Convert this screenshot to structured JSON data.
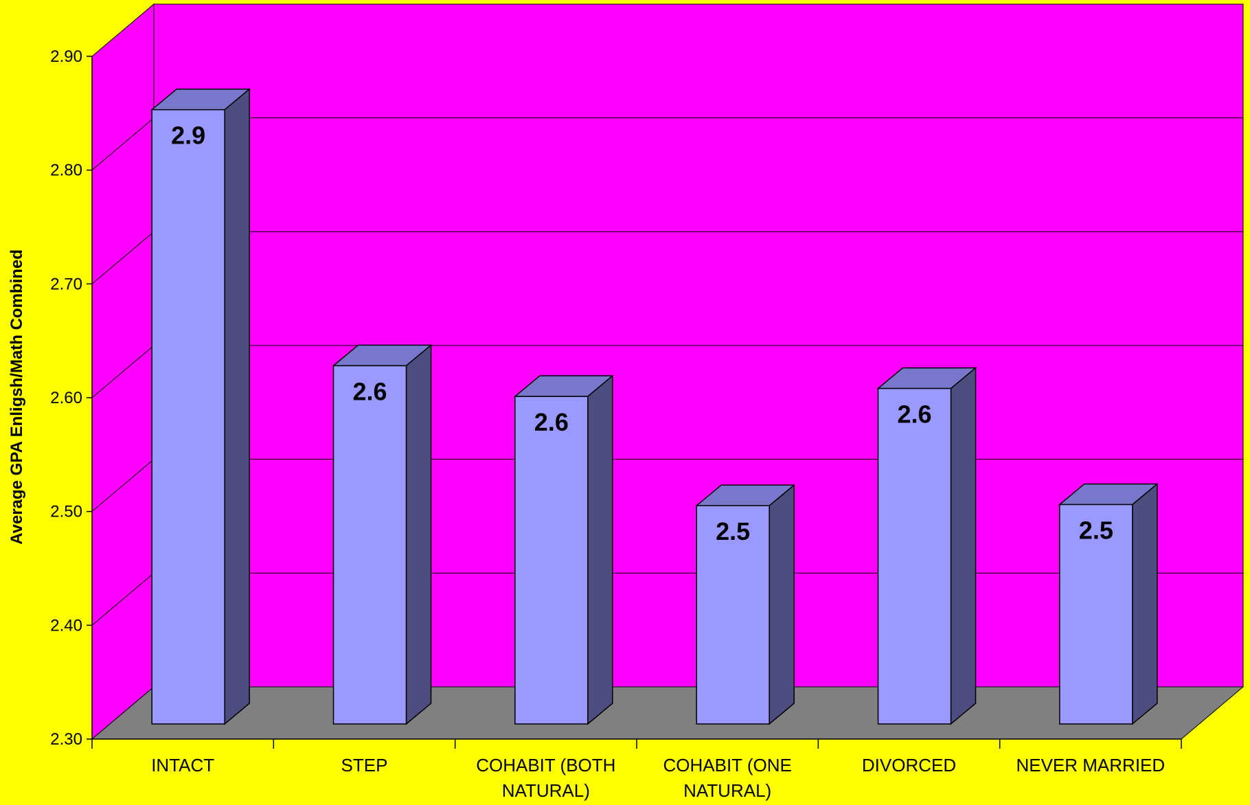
{
  "colors": {
    "background": "#ffff00",
    "plot_back": "#ff00ff",
    "floor": "#808080",
    "bar_front": "#9999ff",
    "bar_top": "#7777cc",
    "bar_side": "#4d4d80",
    "grid": "#000000"
  },
  "chart_data": {
    "type": "bar",
    "ylabel": "Average GPA Enligsh/Math Combined",
    "ylim": [
      2.3,
      2.9
    ],
    "yticks": [
      "2.30",
      "2.40",
      "2.50",
      "2.60",
      "2.70",
      "2.80",
      "2.90"
    ],
    "grid": true,
    "categories": [
      [
        "INTACT"
      ],
      [
        "STEP"
      ],
      [
        "COHABIT (BOTH",
        "NATURAL)"
      ],
      [
        "COHABIT (ONE",
        "NATURAL)"
      ],
      [
        "DIVORCED"
      ],
      [
        "NEVER MARRIED"
      ]
    ],
    "values": [
      2.87,
      2.645,
      2.618,
      2.522,
      2.625,
      2.523
    ],
    "data_labels": [
      "2.9",
      "2.6",
      "2.6",
      "2.5",
      "2.6",
      "2.5"
    ]
  }
}
